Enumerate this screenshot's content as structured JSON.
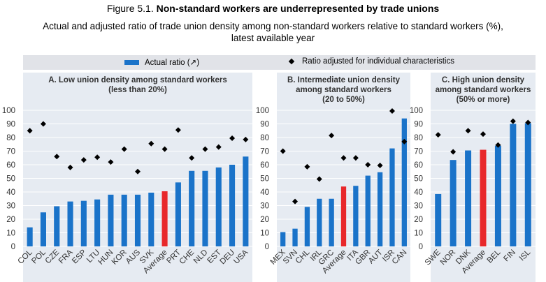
{
  "header": {
    "figure_label": "Figure 5.1.",
    "title": "Non-standard workers are underrepresented by trade unions",
    "subtitle_line1": "Actual and adjusted ratio of trade union density among non-standard workers relative to standard workers (%),",
    "subtitle_line2": "latest available year"
  },
  "legend": {
    "bar_label": "Actual ratio (↗)",
    "marker_label": "Ratio adjusted for individual characteristics"
  },
  "colors": {
    "bar": "#1a73c9",
    "average": "#e8282b",
    "marker": "#000000",
    "panel_bg": "#e6ebf2"
  },
  "chart_data": [
    {
      "type": "bar",
      "title_line1": "A. Low union density among standard workers",
      "title_line2": "(less than 20%)",
      "ylim": [
        0,
        100
      ],
      "yticks": [
        0,
        10,
        20,
        30,
        40,
        50,
        60,
        70,
        80,
        90,
        100
      ],
      "categories": [
        "COL",
        "POL",
        "CZE",
        "FRA",
        "ESP",
        "LTU",
        "HUN",
        "KOR",
        "AUS",
        "SVK",
        "Average",
        "PRT",
        "CHE",
        "NLD",
        "EST",
        "DEU",
        "USA"
      ],
      "series": [
        {
          "name": "Actual ratio",
          "values": [
            14,
            25,
            29.5,
            33,
            33.5,
            34.5,
            38,
            38,
            38,
            39.5,
            40.5,
            47,
            55.5,
            55.5,
            58,
            60,
            66
          ]
        },
        {
          "name": "Ratio adjusted for individual characteristics",
          "values": [
            85,
            90,
            66,
            58,
            63.5,
            65.5,
            62,
            71.5,
            55,
            75.5,
            71.5,
            85.5,
            65,
            71.5,
            73,
            79.5,
            78.5
          ]
        }
      ],
      "highlight": "Average"
    },
    {
      "type": "bar",
      "title_line1": "B. Intermediate union density",
      "title_line2": "among standard workers",
      "title_line3": "(20 to 50%)",
      "ylim": [
        0,
        100
      ],
      "yticks": [
        0,
        10,
        20,
        30,
        40,
        50,
        60,
        70,
        80,
        90,
        100
      ],
      "categories": [
        "MEX",
        "SVN",
        "CHL",
        "IRL",
        "GRC",
        "Average",
        "ITA",
        "GBR",
        "AUT",
        "ISR",
        "CAN"
      ],
      "series": [
        {
          "name": "Actual ratio",
          "values": [
            10.5,
            13,
            29,
            35,
            35,
            44,
            44.5,
            52,
            54.5,
            72,
            94
          ]
        },
        {
          "name": "Ratio adjusted for individual characteristics",
          "values": [
            70,
            33,
            58.5,
            49.5,
            81.5,
            65,
            65,
            60,
            59.5,
            99.5,
            77
          ]
        }
      ],
      "highlight": "Average"
    },
    {
      "type": "bar",
      "title_line1": "C. High union density",
      "title_line2": "among standard workers",
      "title_line3": "(50% or more)",
      "ylim": [
        0,
        100
      ],
      "yticks": [
        0,
        10,
        20,
        30,
        40,
        50,
        60,
        70,
        80,
        90,
        100
      ],
      "categories": [
        "SWE",
        "NOR",
        "DNK",
        "Average",
        "BEL",
        "FIN",
        "ISL"
      ],
      "series": [
        {
          "name": "Actual ratio",
          "values": [
            38.5,
            63.5,
            70.5,
            71,
            74,
            90,
            90.5
          ]
        },
        {
          "name": "Ratio adjusted for individual characteristics",
          "values": [
            82,
            69.5,
            85,
            82.5,
            74.5,
            92,
            91
          ]
        }
      ],
      "highlight": "Average"
    }
  ]
}
